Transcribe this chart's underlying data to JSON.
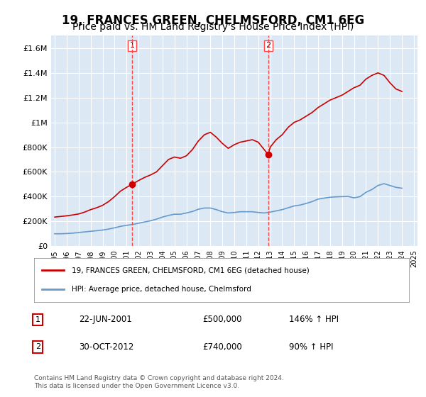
{
  "title": "19, FRANCES GREEN, CHELMSFORD, CM1 6EG",
  "subtitle": "Price paid vs. HM Land Registry's House Price Index (HPI)",
  "title_fontsize": 12,
  "subtitle_fontsize": 10,
  "background_color": "#ffffff",
  "plot_bg_color": "#dce9f5",
  "ylim": [
    0,
    1700000
  ],
  "yticks": [
    0,
    200000,
    400000,
    600000,
    800000,
    1000000,
    1200000,
    1400000,
    1600000
  ],
  "ytick_labels": [
    "£0",
    "£200K",
    "£400K",
    "£600K",
    "£800K",
    "£1M",
    "£1.2M",
    "£1.4M",
    "£1.6M"
  ],
  "xstart_year": 1995,
  "xend_year": 2025,
  "red_line_color": "#cc0000",
  "blue_line_color": "#6699cc",
  "marker_color": "#cc0000",
  "dashed_line_color": "#ff4444",
  "legend_label_red": "19, FRANCES GREEN, CHELMSFORD, CM1 6EG (detached house)",
  "legend_label_blue": "HPI: Average price, detached house, Chelmsford",
  "transaction1_year": 2001.47,
  "transaction1_value": 500000,
  "transaction1_label": "1",
  "transaction1_date": "22-JUN-2001",
  "transaction1_price": "£500,000",
  "transaction1_hpi": "146% ↑ HPI",
  "transaction2_year": 2012.83,
  "transaction2_value": 740000,
  "transaction2_label": "2",
  "transaction2_date": "30-OCT-2012",
  "transaction2_price": "£740,000",
  "transaction2_hpi": "90% ↑ HPI",
  "footer": "Contains HM Land Registry data © Crown copyright and database right 2024.\nThis data is licensed under the Open Government Licence v3.0.",
  "red_x": [
    1995.0,
    1995.5,
    1996.0,
    1996.5,
    1997.0,
    1997.5,
    1998.0,
    1998.5,
    1999.0,
    1999.5,
    2000.0,
    2000.5,
    2001.0,
    2001.47,
    2002.0,
    2002.5,
    2003.0,
    2003.5,
    2004.0,
    2004.5,
    2005.0,
    2005.5,
    2006.0,
    2006.5,
    2007.0,
    2007.5,
    2008.0,
    2008.5,
    2009.0,
    2009.5,
    2010.0,
    2010.5,
    2011.0,
    2011.5,
    2012.0,
    2012.83,
    2013.0,
    2013.5,
    2014.0,
    2014.5,
    2015.0,
    2015.5,
    2016.0,
    2016.5,
    2017.0,
    2017.5,
    2018.0,
    2018.5,
    2019.0,
    2019.5,
    2020.0,
    2020.5,
    2021.0,
    2021.5,
    2022.0,
    2022.5,
    2023.0,
    2023.5,
    2024.0
  ],
  "red_y": [
    235000,
    240000,
    245000,
    252000,
    260000,
    275000,
    295000,
    310000,
    330000,
    360000,
    400000,
    445000,
    475000,
    500000,
    530000,
    555000,
    575000,
    600000,
    650000,
    700000,
    720000,
    710000,
    730000,
    780000,
    850000,
    900000,
    920000,
    880000,
    830000,
    790000,
    820000,
    840000,
    850000,
    860000,
    840000,
    740000,
    800000,
    860000,
    900000,
    960000,
    1000000,
    1020000,
    1050000,
    1080000,
    1120000,
    1150000,
    1180000,
    1200000,
    1220000,
    1250000,
    1280000,
    1300000,
    1350000,
    1380000,
    1400000,
    1380000,
    1320000,
    1270000,
    1250000
  ],
  "blue_x": [
    1995.0,
    1995.5,
    1996.0,
    1996.5,
    1997.0,
    1997.5,
    1998.0,
    1998.5,
    1999.0,
    1999.5,
    2000.0,
    2000.5,
    2001.0,
    2001.5,
    2002.0,
    2002.5,
    2003.0,
    2003.5,
    2004.0,
    2004.5,
    2005.0,
    2005.5,
    2006.0,
    2006.5,
    2007.0,
    2007.5,
    2008.0,
    2008.5,
    2009.0,
    2009.5,
    2010.0,
    2010.5,
    2011.0,
    2011.5,
    2012.0,
    2012.5,
    2013.0,
    2013.5,
    2014.0,
    2014.5,
    2015.0,
    2015.5,
    2016.0,
    2016.5,
    2017.0,
    2017.5,
    2018.0,
    2018.5,
    2019.0,
    2019.5,
    2020.0,
    2020.5,
    2021.0,
    2021.5,
    2022.0,
    2022.5,
    2023.0,
    2023.5,
    2024.0
  ],
  "blue_y": [
    100000,
    100000,
    102000,
    105000,
    110000,
    115000,
    120000,
    125000,
    130000,
    138000,
    148000,
    160000,
    168000,
    175000,
    185000,
    195000,
    205000,
    218000,
    235000,
    248000,
    258000,
    258000,
    268000,
    280000,
    298000,
    308000,
    308000,
    295000,
    278000,
    268000,
    272000,
    278000,
    278000,
    278000,
    272000,
    268000,
    275000,
    285000,
    295000,
    310000,
    325000,
    332000,
    345000,
    360000,
    380000,
    388000,
    395000,
    398000,
    400000,
    402000,
    390000,
    400000,
    435000,
    458000,
    490000,
    505000,
    490000,
    475000,
    468000
  ]
}
